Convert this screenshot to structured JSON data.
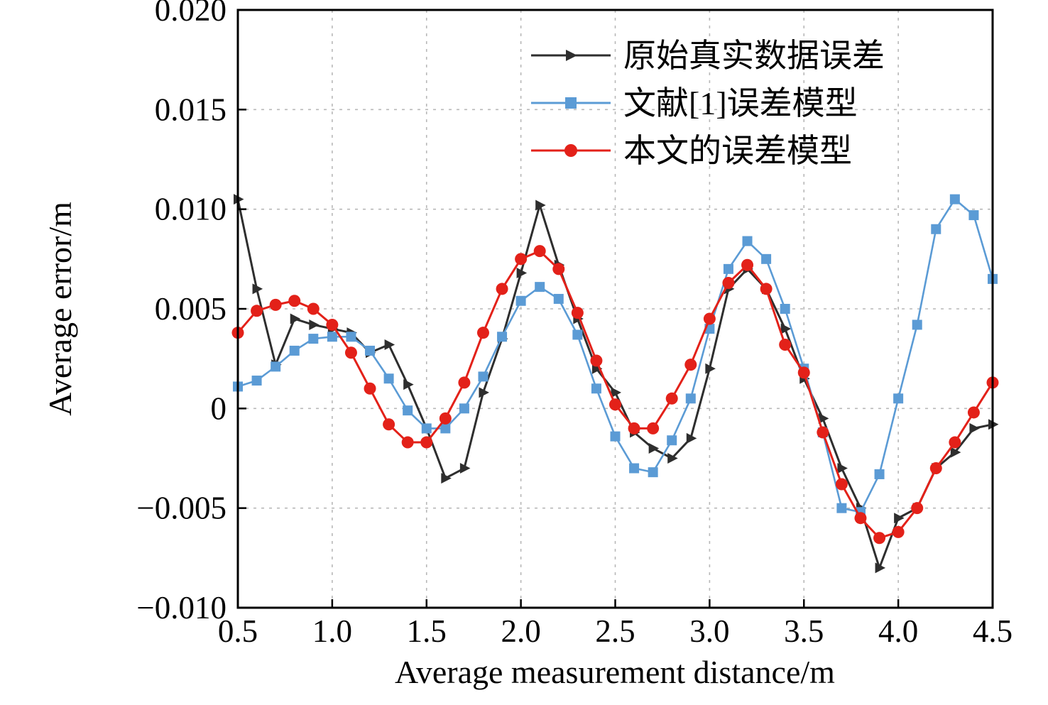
{
  "figure": {
    "background": "#ffffff"
  },
  "colors": {
    "grid": "#b8b8b8",
    "axis": "#000000",
    "text": "#000000"
  },
  "chart_data": {
    "type": "line",
    "title": "",
    "xlabel": "Average measurement distance/m",
    "ylabel": "Average error/m",
    "xlim": [
      0.5,
      4.5
    ],
    "ylim": [
      -0.01,
      0.02
    ],
    "grid": true,
    "grid_style": "dashed",
    "legend_position": "top-right-inside",
    "x_ticks": [
      0.5,
      1.0,
      1.5,
      2.0,
      2.5,
      3.0,
      3.5,
      4.0,
      4.5
    ],
    "x_tick_labels": [
      "0.5",
      "1.0",
      "1.5",
      "2.0",
      "2.5",
      "3.0",
      "3.5",
      "4.0",
      "4.5"
    ],
    "y_ticks": [
      -0.01,
      -0.005,
      0,
      0.005,
      0.01,
      0.015,
      0.02
    ],
    "y_tick_labels": [
      "−0.010",
      "−0.005",
      "0",
      "0.005",
      "0.010",
      "0.015",
      "0.020"
    ],
    "x": [
      0.5,
      0.6,
      0.7,
      0.8,
      0.9,
      1.0,
      1.1,
      1.2,
      1.3,
      1.4,
      1.5,
      1.6,
      1.7,
      1.8,
      1.9,
      2.0,
      2.1,
      2.2,
      2.3,
      2.4,
      2.5,
      2.6,
      2.7,
      2.8,
      2.9,
      3.0,
      3.1,
      3.2,
      3.3,
      3.4,
      3.5,
      3.6,
      3.7,
      3.8,
      3.9,
      4.0,
      4.1,
      4.2,
      4.3,
      4.4,
      4.5
    ],
    "series": [
      {
        "name": "原始真实数据误差",
        "color": "#2e2e2e",
        "marker": "triangle-right",
        "values": [
          0.0105,
          0.006,
          0.0022,
          0.0045,
          0.0042,
          0.004,
          0.0038,
          0.0028,
          0.0032,
          0.0012,
          -0.001,
          -0.0035,
          -0.003,
          0.0008,
          0.0035,
          0.0068,
          0.0102,
          0.0072,
          0.0045,
          0.002,
          0.0008,
          -0.0012,
          -0.002,
          -0.0025,
          -0.0015,
          0.002,
          0.006,
          0.007,
          0.006,
          0.004,
          0.0015,
          -0.0005,
          -0.003,
          -0.005,
          -0.008,
          -0.0055,
          -0.005,
          -0.003,
          -0.0022,
          -0.001,
          -0.0008
        ]
      },
      {
        "name": "文献[1]误差模型",
        "color": "#5b9bd5",
        "marker": "square",
        "values": [
          0.0011,
          0.0014,
          0.0021,
          0.0029,
          0.0035,
          0.0036,
          0.0036,
          0.0029,
          0.0015,
          -0.0001,
          -0.001,
          -0.001,
          0.0,
          0.0016,
          0.0036,
          0.0054,
          0.0061,
          0.0055,
          0.0037,
          0.001,
          -0.0014,
          -0.003,
          -0.0032,
          -0.0016,
          0.0005,
          0.004,
          0.007,
          0.0084,
          0.0075,
          0.005,
          0.002,
          -0.0012,
          -0.005,
          -0.0052,
          -0.0033,
          0.0005,
          0.0042,
          0.009,
          0.0105,
          0.0097,
          0.0065
        ]
      },
      {
        "name": "本文的误差模型",
        "color": "#e32119",
        "marker": "circle",
        "values": [
          0.0038,
          0.0049,
          0.0052,
          0.0054,
          0.005,
          0.0042,
          0.0028,
          0.001,
          -0.0008,
          -0.0017,
          -0.0017,
          -0.0005,
          0.0013,
          0.0038,
          0.006,
          0.0075,
          0.0079,
          0.007,
          0.0048,
          0.0024,
          0.0002,
          -0.001,
          -0.001,
          0.0005,
          0.0022,
          0.0045,
          0.0063,
          0.0072,
          0.006,
          0.0032,
          0.0018,
          -0.0012,
          -0.0038,
          -0.0055,
          -0.0065,
          -0.0062,
          -0.005,
          -0.003,
          -0.0017,
          -0.0002,
          0.0013
        ]
      }
    ]
  }
}
